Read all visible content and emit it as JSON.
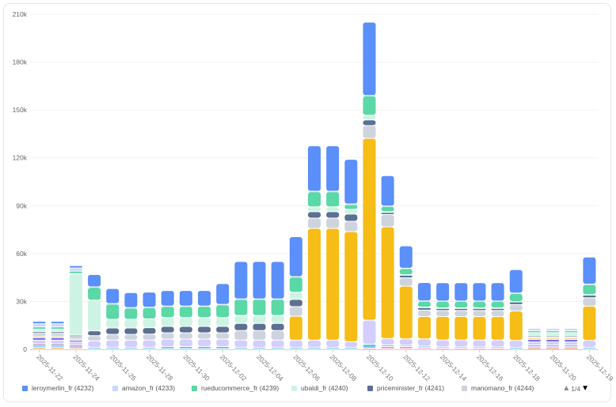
{
  "chart_data": {
    "type": "bar",
    "stacked": true,
    "categories": [
      "2025-11-22",
      "2025-11-23",
      "2025-11-24",
      "2025-11-25",
      "2025-11-26",
      "2025-11-27",
      "2025-11-28",
      "2025-11-29",
      "2025-11-30",
      "2025-12-01",
      "2025-12-02",
      "2025-12-03",
      "2025-12-04",
      "2025-12-05",
      "2025-12-06",
      "2025-12-07",
      "2025-12-08",
      "2025-12-09",
      "2025-12-10",
      "2025-12-11",
      "2025-12-12",
      "2025-12-13",
      "2025-12-14",
      "2025-12-15",
      "2025-12-16",
      "2025-12-17",
      "2025-12-18",
      "2025-11-19",
      "2025-11-20",
      "2025-11-21",
      "2025-12-19"
    ],
    "tick_labels": [
      "2025-11-22",
      "2025-11-24",
      "2025-11-26",
      "2025-11-28",
      "2025-11-30",
      "2025-12-02",
      "2025-12-04",
      "2025-12-06",
      "2025-12-08",
      "2025-12-10",
      "2025-12-12",
      "2025-12-14",
      "2025-12-16",
      "2025-12-18",
      "2025-11-20",
      "2025-12-19"
    ],
    "ylim": [
      0,
      210000
    ],
    "yticks": [
      "0",
      "30k",
      "60k",
      "90k",
      "120k",
      "150k",
      "180k",
      "210k"
    ],
    "ytick_values": [
      0,
      30000,
      60000,
      90000,
      120000,
      150000,
      180000,
      210000
    ],
    "grid": true,
    "legend_position": "bottom",
    "legend_page": "1/4",
    "series": [
      {
        "color": "#ff99c3",
        "values": [
          0,
          0,
          0,
          0,
          0,
          0,
          0,
          0,
          0,
          0,
          0,
          0,
          0,
          0,
          0,
          0,
          0,
          0,
          500,
          1500,
          1500,
          1000,
          500,
          500,
          500,
          500,
          0,
          300,
          300,
          300,
          0
        ]
      },
      {
        "color": "#ff9845",
        "values": [
          1000,
          1000,
          800,
          0,
          0,
          0,
          0,
          0,
          0,
          0,
          0,
          0,
          0,
          0,
          0,
          0,
          0,
          0,
          0,
          0,
          0,
          0,
          0,
          0,
          0,
          0,
          0,
          500,
          500,
          500,
          0
        ]
      },
      {
        "color": "#6dc8ec",
        "values": [
          1000,
          1000,
          500,
          1000,
          1000,
          1000,
          1000,
          1500,
          1500,
          1500,
          1500,
          1000,
          1000,
          1000,
          1000,
          1000,
          1000,
          1000,
          2500,
          1000,
          800,
          800,
          800,
          800,
          800,
          800,
          1000,
          800,
          800,
          800,
          1000
        ]
      },
      {
        "color": "#9661bc",
        "values": [
          1000,
          1000,
          1000,
          0,
          0,
          0,
          0,
          0,
          0,
          0,
          0,
          0,
          0,
          0,
          0,
          0,
          0,
          0,
          0,
          0,
          0,
          0,
          0,
          0,
          0,
          0,
          0,
          800,
          800,
          800,
          0
        ]
      },
      {
        "color": "#d3cefd",
        "values": [
          2500,
          2500,
          2000,
          4000,
          4500,
          4500,
          4500,
          4600,
          4600,
          4600,
          4600,
          4500,
          4500,
          4500,
          4500,
          4500,
          4500,
          3500,
          15000,
          4000,
          4000,
          4500,
          4300,
          4300,
          4300,
          4300,
          4300,
          2000,
          2000,
          2000,
          4300
        ]
      },
      {
        "color": "#7262fd",
        "values": [
          1500,
          1500,
          1000,
          0,
          0,
          0,
          0,
          0,
          0,
          0,
          0,
          0,
          0,
          0,
          0,
          0,
          0,
          0,
          0,
          0,
          0,
          0,
          0,
          0,
          0,
          0,
          0,
          1500,
          1500,
          1500,
          0
        ]
      },
      {
        "color": "#f6bd16",
        "values": [
          800,
          800,
          800,
          0,
          0,
          0,
          0,
          0,
          0,
          0,
          0,
          0,
          0,
          0,
          15000,
          70000,
          70000,
          69000,
          114000,
          70000,
          33000,
          14000,
          14700,
          14700,
          14700,
          14700,
          18500,
          800,
          800,
          800,
          21500
        ]
      },
      {
        "name": "manomano_fr (4244)",
        "color": "#ced4de",
        "values": [
          2000,
          2000,
          2000,
          3300,
          3600,
          3600,
          3800,
          4000,
          4000,
          4000,
          4000,
          6000,
          6000,
          6000,
          6000,
          6500,
          6500,
          6500,
          8000,
          7700,
          5300,
          4000,
          3800,
          3800,
          3800,
          3800,
          4000,
          800,
          800,
          800,
          5300
        ]
      },
      {
        "name": "priceminister_fr (4241)",
        "color": "#5d7092",
        "values": [
          1000,
          1000,
          500,
          3000,
          4000,
          4000,
          4000,
          4000,
          4000,
          4000,
          4000,
          4500,
          4500,
          4500,
          4500,
          4000,
          4000,
          4500,
          3500,
          1300,
          1600,
          1600,
          1300,
          1300,
          1300,
          1300,
          1600,
          700,
          700,
          700,
          1600
        ]
      },
      {
        "name": "ubaldi_fr (4240)",
        "color": "#cdf3e4",
        "values": [
          1500,
          1500,
          38600,
          19300,
          5500,
          5500,
          5500,
          5500,
          5500,
          5500,
          5500,
          5000,
          5000,
          5000,
          4500,
          3000,
          3000,
          3000,
          3000,
          500,
          300,
          300,
          300,
          300,
          300,
          300,
          300,
          2000,
          2000,
          2000,
          300
        ]
      },
      {
        "name": "rueducommerce_fr (4239)",
        "color": "#5ad8a6",
        "values": [
          1500,
          1500,
          1500,
          8000,
          9500,
          7000,
          7000,
          7000,
          7000,
          7000,
          8000,
          10000,
          10000,
          10000,
          9500,
          9500,
          9500,
          3000,
          12000,
          3300,
          3800,
          3600,
          4000,
          4000,
          4000,
          4000,
          5000,
          1200,
          1200,
          1200,
          6300
        ]
      },
      {
        "name": "amazon_fr (4233)",
        "color": "#c6d8fb",
        "values": [
          2000,
          2000,
          2000,
          300,
          300,
          300,
          300,
          300,
          300,
          300,
          300,
          300,
          300,
          300,
          300,
          300,
          300,
          300,
          300,
          300,
          300,
          300,
          300,
          300,
          300,
          300,
          300,
          1500,
          1500,
          1500,
          300
        ]
      },
      {
        "name": "leroymerlin_fr (4232)",
        "color": "#5b8ff9",
        "values": [
          1500,
          1500,
          1500,
          7700,
          9400,
          9400,
          9500,
          9700,
          9700,
          9700,
          13000,
          23500,
          23500,
          23500,
          25000,
          28500,
          28500,
          28000,
          46000,
          19000,
          14000,
          11500,
          11500,
          11500,
          11500,
          11500,
          14700,
          0,
          0,
          0,
          17000
        ]
      }
    ],
    "legend": [
      {
        "label": "leroymerlin_fr (4232)",
        "color": "#5b8ff9"
      },
      {
        "label": "amazon_fr (4233)",
        "color": "#c6d8fb"
      },
      {
        "label": "rueducommerce_fr (4239)",
        "color": "#5ad8a6"
      },
      {
        "label": "ubaldi_fr (4240)",
        "color": "#cdf3e4"
      },
      {
        "label": "priceminister_fr (4241)",
        "color": "#5d7092"
      },
      {
        "label": "manomano_fr (4244)",
        "color": "#ced4de"
      }
    ]
  }
}
